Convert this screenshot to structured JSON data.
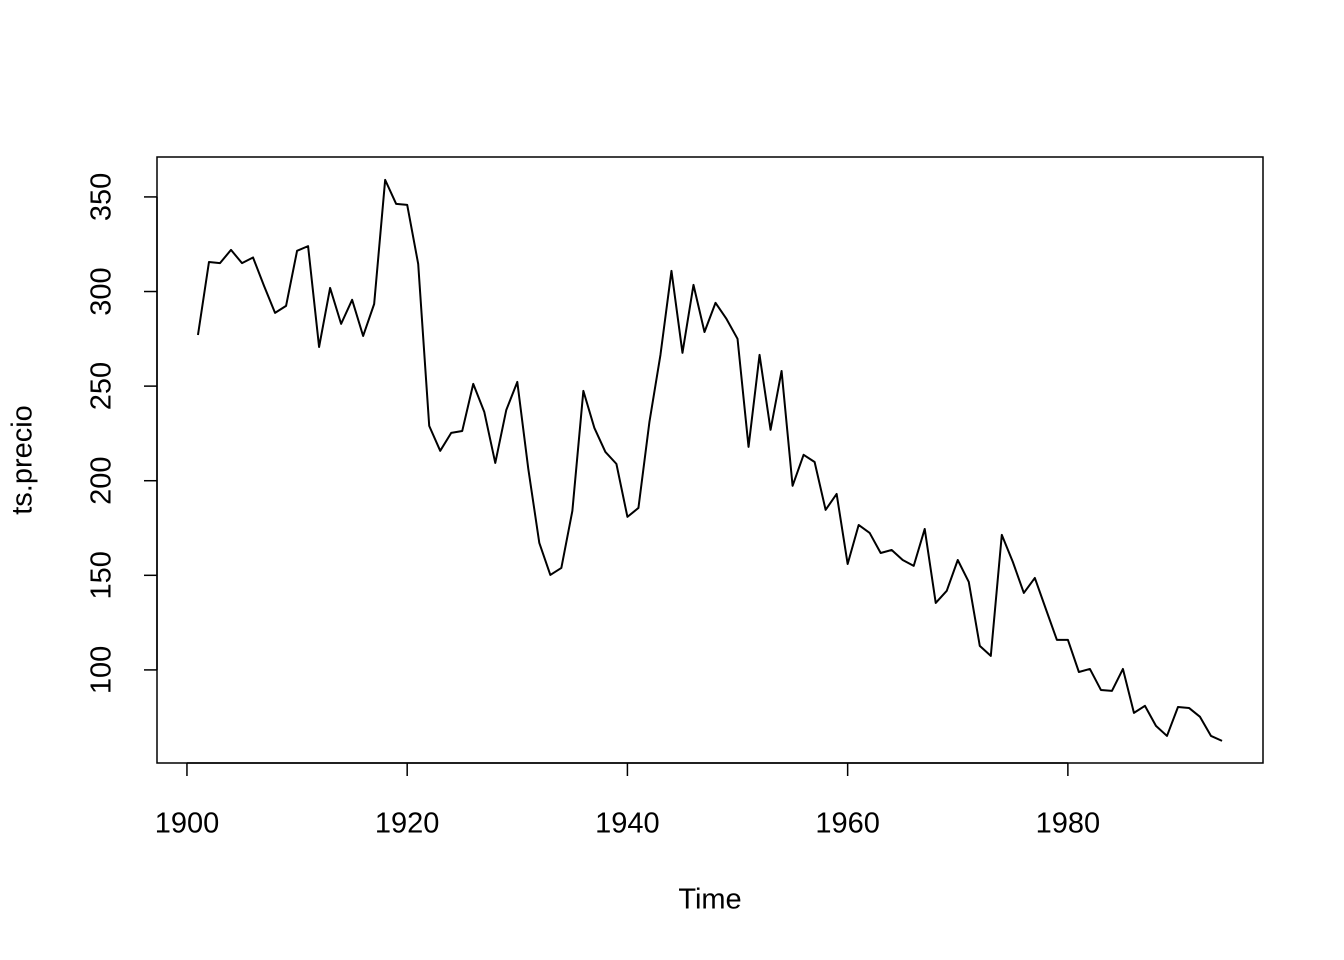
{
  "chart_data": {
    "type": "line",
    "x_label": "Time",
    "y_label": "ts.precio",
    "x": [
      1901,
      1902,
      1903,
      1904,
      1905,
      1906,
      1907,
      1908,
      1909,
      1910,
      1911,
      1912,
      1913,
      1914,
      1915,
      1916,
      1917,
      1918,
      1919,
      1920,
      1921,
      1922,
      1923,
      1924,
      1925,
      1926,
      1927,
      1928,
      1929,
      1930,
      1931,
      1932,
      1933,
      1934,
      1935,
      1936,
      1937,
      1938,
      1939,
      1940,
      1941,
      1942,
      1943,
      1944,
      1945,
      1946,
      1947,
      1948,
      1949,
      1950,
      1951,
      1952,
      1953,
      1954,
      1955,
      1956,
      1957,
      1958,
      1959,
      1960,
      1961,
      1962,
      1963,
      1964,
      1965,
      1966,
      1967,
      1968,
      1969,
      1970,
      1971,
      1972,
      1973,
      1974,
      1975,
      1976,
      1977,
      1978,
      1979,
      1980,
      1981,
      1982,
      1983,
      1984,
      1985,
      1986,
      1987,
      1988,
      1989,
      1990,
      1991,
      1992,
      1993,
      1994
    ],
    "series": [
      {
        "color": "#000000",
        "values": [
          277,
          315.6,
          315,
          322,
          315,
          318,
          303,
          288.7,
          292.4,
          321.5,
          324,
          270.7,
          301.9,
          282.9,
          295.6,
          276.5,
          293.4,
          359,
          346.3,
          345.8,
          314.6,
          229,
          215.8,
          225.3,
          226.3,
          251.2,
          236.4,
          209.4,
          237.4,
          252.2,
          206.2,
          167.1,
          150.2,
          153.9,
          184,
          247.5,
          227.9,
          215.2,
          208.9,
          180.9,
          185.6,
          231.1,
          266.5,
          310.9,
          267.6,
          303.5,
          278.6,
          294,
          285.5,
          275,
          217.9,
          266.5,
          226.9,
          258,
          197.3,
          213.7,
          209.9,
          184.6,
          193,
          156,
          176.6,
          172.4,
          161.8,
          163.4,
          158.1,
          155,
          174.5,
          135.4,
          141.8,
          158.1,
          146.5,
          112.7,
          107.4,
          171.4,
          157.1,
          140.7,
          148.6,
          132.2,
          115.9,
          115.9,
          98.9,
          100.5,
          89.4,
          88.9,
          100.5,
          77.3,
          81,
          70.4,
          65.1,
          80.4,
          79.9,
          75.2,
          65.1,
          62.5
        ]
      }
    ],
    "xlim": [
      1897.28,
      1997.72
    ],
    "ylim": [
      50.8,
      371.1
    ],
    "xticks": [
      1900,
      1920,
      1940,
      1960,
      1980
    ],
    "yticks": [
      100,
      150,
      200,
      250,
      300,
      350
    ]
  }
}
